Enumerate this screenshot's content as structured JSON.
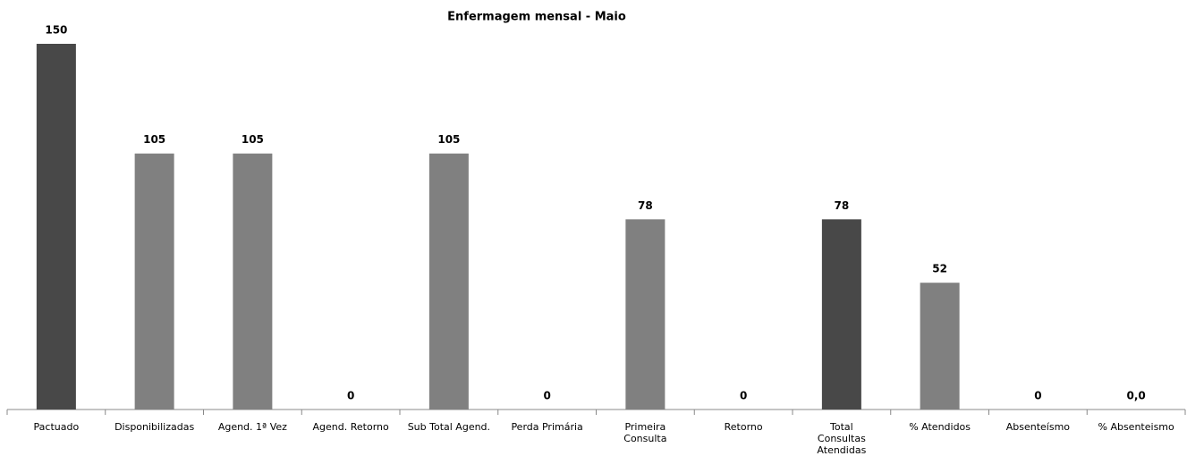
{
  "chart_data": {
    "type": "bar",
    "title": "Enfermagem mensal - Maio",
    "categories": [
      "Pactuado",
      "Disponibilizadas",
      "Agend. 1ª Vez",
      "Agend. Retorno",
      "Sub Total Agend.",
      "Perda Primária",
      "Primeira Consulta",
      "Retorno",
      "Total Consultas Atendidas",
      "% Atendidos",
      "Absenteísmo",
      "% Absenteismo"
    ],
    "values": [
      150,
      105,
      105,
      0,
      105,
      0,
      78,
      0,
      78,
      52,
      0,
      0
    ],
    "value_labels": [
      "150",
      "105",
      "105",
      "0",
      "105",
      "0",
      "78",
      "0",
      "78",
      "52",
      "0",
      "0,0"
    ],
    "colors": [
      "#484848",
      "#808080",
      "#808080",
      "#808080",
      "#808080",
      "#808080",
      "#808080",
      "#808080",
      "#484848",
      "#808080",
      "#808080",
      "#808080"
    ],
    "ylim": [
      0,
      150
    ]
  }
}
